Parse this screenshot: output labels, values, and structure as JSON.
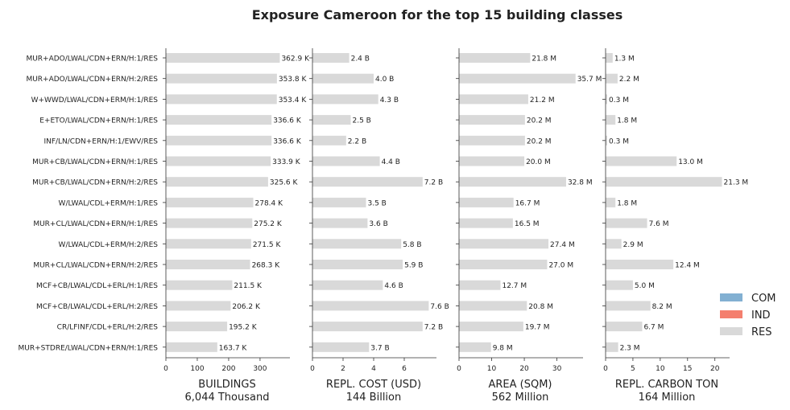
{
  "chart_data": {
    "type": "bar",
    "title": "Exposure Cameroon for the top 15 building classes",
    "categories": [
      "MUR+ADO/LWAL/CDN+ERN/H:1/RES",
      "MUR+ADO/LWAL/CDN+ERN/H:2/RES",
      "W+WWD/LWAL/CDN+ERM/H:1/RES",
      "E+ETO/LWAL/CDN+ERN/H:1/RES",
      "INF/LN/CDN+ERN/H:1/EWV/RES",
      "MUR+CB/LWAL/CDN+ERN/H:1/RES",
      "MUR+CB/LWAL/CDN+ERN/H:2/RES",
      "W/LWAL/CDL+ERM/H:1/RES",
      "MUR+CL/LWAL/CDN+ERN/H:1/RES",
      "W/LWAL/CDL+ERM/H:2/RES",
      "MUR+CL/LWAL/CDN+ERN/H:2/RES",
      "MCF+CB/LWAL/CDL+ERL/H:1/RES",
      "MCF+CB/LWAL/CDL+ERL/H:2/RES",
      "CR/LFINF/CDL+ERL/H:2/RES",
      "MUR+STDRE/LWAL/CDN+ERN/H:1/RES"
    ],
    "legend": {
      "placement": "right",
      "entries": [
        {
          "label": "COM",
          "color": "#82b0d2"
        },
        {
          "label": "IND",
          "color": "#f47f6e"
        },
        {
          "label": "RES",
          "color": "#d9d9d9"
        }
      ]
    },
    "panels": [
      {
        "xlabel": "BUILDINGS",
        "total": "6,044 Thousand",
        "xlim": [
          0,
          390
        ],
        "ticks": [
          0,
          100,
          200,
          300
        ],
        "values": [
          362.9,
          353.8,
          353.4,
          336.6,
          336.6,
          333.9,
          325.6,
          278.4,
          275.2,
          271.5,
          268.3,
          211.5,
          206.2,
          195.2,
          163.7
        ],
        "labels": [
          "362.9 K",
          "353.8 K",
          "353.4 K",
          "336.6 K",
          "336.6 K",
          "333.9 K",
          "325.6 K",
          "278.4 K",
          "275.2 K",
          "271.5 K",
          "268.3 K",
          "211.5 K",
          "206.2 K",
          "195.2 K",
          "163.7 K"
        ]
      },
      {
        "xlabel": "REPL. COST (USD)",
        "total": "144 Billion",
        "xlim": [
          0,
          8
        ],
        "ticks": [
          0,
          2,
          4,
          6
        ],
        "values": [
          2.4,
          4.0,
          4.3,
          2.5,
          2.2,
          4.4,
          7.2,
          3.5,
          3.6,
          5.8,
          5.9,
          4.6,
          7.6,
          7.2,
          3.7
        ],
        "labels": [
          "2.4 B",
          "4.0 B",
          "4.3 B",
          "2.5 B",
          "2.2 B",
          "4.4 B",
          "7.2 B",
          "3.5 B",
          "3.6 B",
          "5.8 B",
          "5.9 B",
          "4.6 B",
          "7.6 B",
          "7.2 B",
          "3.7 B"
        ]
      },
      {
        "xlabel": "AREA (SQM)",
        "total": "562 Million",
        "xlim": [
          0,
          37.5
        ],
        "ticks": [
          0,
          10,
          20,
          30
        ],
        "values": [
          21.8,
          35.7,
          21.2,
          20.2,
          20.2,
          20.0,
          32.8,
          16.7,
          16.5,
          27.4,
          27.0,
          12.7,
          20.8,
          19.7,
          9.8
        ],
        "labels": [
          "21.8 M",
          "35.7 M",
          "21.2 M",
          "20.2 M",
          "20.2 M",
          "20.0 M",
          "32.8 M",
          "16.7 M",
          "16.5 M",
          "27.4 M",
          "27.0 M",
          "12.7 M",
          "20.8 M",
          "19.7 M",
          "9.8 M"
        ]
      },
      {
        "xlabel": "REPL. CARBON TON",
        "total": "164 Million",
        "xlim": [
          0,
          22.4
        ],
        "ticks": [
          0,
          5,
          10,
          15,
          20
        ],
        "values": [
          1.3,
          2.2,
          0.3,
          1.8,
          0.3,
          13.0,
          21.3,
          1.8,
          7.6,
          2.9,
          12.4,
          5.0,
          8.2,
          6.7,
          2.3
        ],
        "labels": [
          "1.3 M",
          "2.2 M",
          "0.3 M",
          "1.8 M",
          "0.3 M",
          "13.0 M",
          "21.3 M",
          "1.8 M",
          "7.6 M",
          "2.9 M",
          "12.4 M",
          "5.0 M",
          "8.2 M",
          "6.7 M",
          "2.3 M"
        ]
      }
    ]
  }
}
